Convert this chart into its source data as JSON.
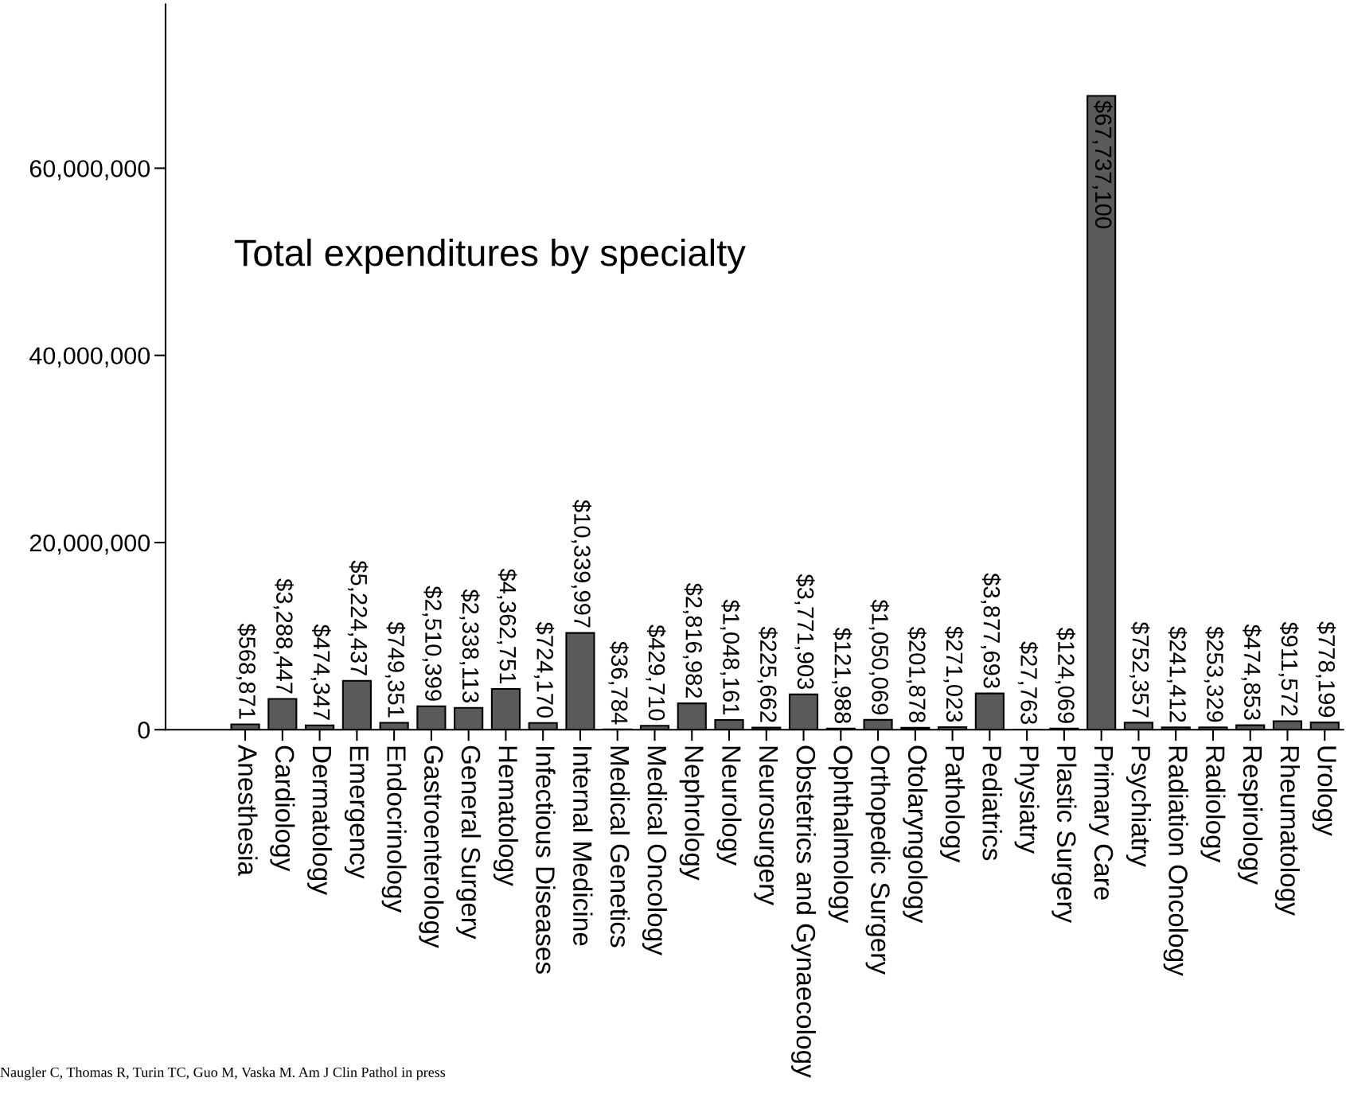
{
  "chart_data": {
    "type": "bar",
    "title": "Total expenditures by specialty",
    "categories": [
      "Anesthesia",
      "Cardiology",
      "Dermatology",
      "Emergency",
      "Endocrinology",
      "Gastroenterology",
      "General Surgery",
      "Hematology",
      "Infectious Diseases",
      "Internal Medicine",
      "Medical Genetics",
      "Medical Oncology",
      "Nephrology",
      "Neurology",
      "Neurosurgery",
      "Obstetrics and Gynaecology",
      "Ophthalmology",
      "Orthopedic Surgery",
      "Otolaryngology",
      "Pathology",
      "Pediatrics",
      "Physiatry",
      "Plastic Surgery",
      "Primary Care",
      "Psychiatry",
      "Radiation Oncology",
      "Radiology",
      "Respirology",
      "Rheumatology",
      "Urology"
    ],
    "values": [
      568871,
      3288447,
      474347,
      5224437,
      749351,
      2510399,
      2338113,
      4362751,
      724170,
      10339997,
      36784,
      429710,
      2816982,
      1048161,
      225662,
      3771903,
      121988,
      1050069,
      201878,
      271023,
      3877693,
      27763,
      124069,
      67737100,
      752357,
      241412,
      253329,
      474853,
      911572,
      778199
    ],
    "value_labels": [
      "$568,871",
      "$3,288,447",
      "$474,347",
      "$5,224,437",
      "$749,351",
      "$2,510,399",
      "$2,338,113",
      "$4,362,751",
      "$724,170",
      "$10,339,997",
      "$36,784",
      "$429,710",
      "$2,816,982",
      "$1,048,161",
      "$225,662",
      "$3,771,903",
      "$121,988",
      "$1,050,069",
      "$201,878",
      "$271,023",
      "$3,877,693",
      "$27,763",
      "$124,069",
      "$67,737,100",
      "$752,357",
      "$241,412",
      "$253,329",
      "$474,853",
      "$911,572",
      "$778,199"
    ],
    "color": "#5a5a5a",
    "ylim": [
      0,
      77500000
    ],
    "yticks": [
      0,
      {
        "value": 20000000,
        "label": "20,000,000"
      },
      {
        "value": 40000000,
        "label": "40,000,000"
      },
      {
        "value": 60000000,
        "label": "60,000,000"
      }
    ],
    "grid": false,
    "annotations": [
      "Naugler C, Thomas R, Turin TC, Guo M, Vaska M. Am J Clin Pathol in press"
    ]
  }
}
